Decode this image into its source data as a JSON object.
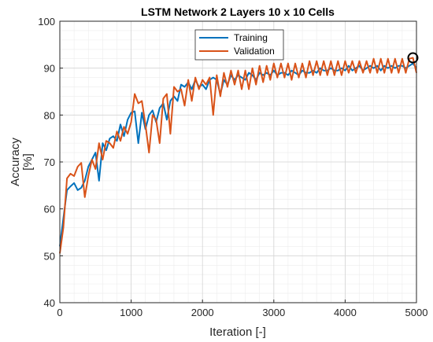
{
  "chart_data": {
    "type": "line",
    "title": "LSTM Network 2 Layers 10 x 10 Cells",
    "xlabel": "Iteration [-]",
    "ylabel_line1": "Accuracy",
    "ylabel_line2": "[%]",
    "xlim": [
      0,
      5000
    ],
    "ylim": [
      40,
      100
    ],
    "x_ticks": [
      0,
      1000,
      2000,
      3000,
      4000,
      5000
    ],
    "y_ticks": [
      40,
      50,
      60,
      70,
      80,
      90,
      100
    ],
    "grid": true,
    "minor_grid": true,
    "legend_position": "top-center",
    "marker_point": {
      "x": 4950,
      "y": 92.2
    },
    "series": [
      {
        "name": "Training",
        "color": "#0072BD",
        "x": [
          0,
          50,
          100,
          150,
          200,
          250,
          300,
          350,
          400,
          450,
          500,
          550,
          600,
          650,
          700,
          750,
          800,
          850,
          900,
          950,
          1000,
          1050,
          1100,
          1150,
          1200,
          1250,
          1300,
          1350,
          1400,
          1450,
          1500,
          1550,
          1600,
          1650,
          1700,
          1750,
          1800,
          1850,
          1900,
          1950,
          2000,
          2050,
          2100,
          2150,
          2200,
          2250,
          2300,
          2350,
          2400,
          2450,
          2500,
          2550,
          2600,
          2650,
          2700,
          2750,
          2800,
          2850,
          2900,
          2950,
          3000,
          3050,
          3100,
          3150,
          3200,
          3250,
          3300,
          3350,
          3400,
          3450,
          3500,
          3550,
          3600,
          3650,
          3700,
          3750,
          3800,
          3850,
          3900,
          3950,
          4000,
          4050,
          4100,
          4150,
          4200,
          4250,
          4300,
          4350,
          4400,
          4450,
          4500,
          4550,
          4600,
          4650,
          4700,
          4750,
          4800,
          4850,
          4900,
          4950,
          5000
        ],
        "y": [
          52,
          58,
          64,
          64.8,
          65.5,
          64,
          64.5,
          66,
          69,
          70.5,
          72,
          66,
          74,
          72.5,
          75,
          75.5,
          74.5,
          78,
          75.5,
          79,
          80.5,
          80.8,
          74,
          80.5,
          77,
          80,
          81,
          78.5,
          81.5,
          82.5,
          79,
          83,
          84,
          83,
          86.5,
          86,
          87,
          85.5,
          87.5,
          86,
          86.5,
          85.5,
          87.5,
          88,
          87.5,
          84.5,
          87.5,
          86.5,
          88.5,
          87.5,
          88.5,
          88,
          87.5,
          89,
          88.5,
          87.5,
          89,
          88.5,
          89,
          88.5,
          89.5,
          88.5,
          89,
          89,
          88.5,
          89.5,
          89,
          88.5,
          89.5,
          89,
          89,
          89.5,
          89,
          90,
          89.5,
          89.5,
          90,
          89.5,
          89.5,
          90,
          89.5,
          90.5,
          89.5,
          90,
          90.5,
          89.5,
          90,
          90.5,
          90,
          90.5,
          89.5,
          90.5,
          90,
          90.5,
          90,
          90.5,
          90.5,
          90,
          90.5,
          91,
          90
        ]
      },
      {
        "name": "Validation",
        "color": "#D95319",
        "x": [
          0,
          50,
          100,
          150,
          200,
          250,
          300,
          350,
          400,
          450,
          500,
          550,
          600,
          650,
          700,
          750,
          800,
          850,
          900,
          950,
          1000,
          1050,
          1100,
          1150,
          1200,
          1250,
          1300,
          1350,
          1400,
          1450,
          1500,
          1550,
          1600,
          1650,
          1700,
          1750,
          1800,
          1850,
          1900,
          1950,
          2000,
          2050,
          2100,
          2150,
          2200,
          2250,
          2300,
          2350,
          2400,
          2450,
          2500,
          2550,
          2600,
          2650,
          2700,
          2750,
          2800,
          2850,
          2900,
          2950,
          3000,
          3050,
          3100,
          3150,
          3200,
          3250,
          3300,
          3350,
          3400,
          3450,
          3500,
          3550,
          3600,
          3650,
          3700,
          3750,
          3800,
          3850,
          3900,
          3950,
          4000,
          4050,
          4100,
          4150,
          4200,
          4250,
          4300,
          4350,
          4400,
          4450,
          4500,
          4550,
          4600,
          4650,
          4700,
          4750,
          4800,
          4850,
          4900,
          4950,
          5000
        ],
        "y": [
          50.5,
          56,
          66.5,
          67.5,
          67,
          69,
          69.8,
          62.5,
          67,
          70.5,
          68.5,
          74,
          70.5,
          74.5,
          74,
          73,
          76.5,
          74.5,
          77.5,
          76,
          78.5,
          84.5,
          82.5,
          83,
          78,
          72,
          80,
          79,
          74,
          83.5,
          84.5,
          76,
          86,
          85,
          85.5,
          82,
          87.5,
          83,
          88,
          85.5,
          87.5,
          86.5,
          88,
          80,
          88.5,
          84,
          89,
          86,
          89.5,
          86.5,
          89.5,
          85.5,
          89.5,
          85.5,
          90,
          86.5,
          90.5,
          87,
          90.5,
          87.5,
          91,
          88,
          91,
          88,
          91,
          87.5,
          91,
          88,
          91,
          88,
          91.5,
          88.5,
          91.5,
          88.5,
          91.5,
          88.5,
          91.5,
          88.5,
          91.5,
          88.5,
          91.5,
          89,
          91.5,
          89,
          91.5,
          89,
          91.5,
          89,
          92,
          89,
          92,
          89,
          92,
          89,
          92,
          89,
          92,
          89,
          92,
          92.2,
          89
        ]
      }
    ]
  }
}
